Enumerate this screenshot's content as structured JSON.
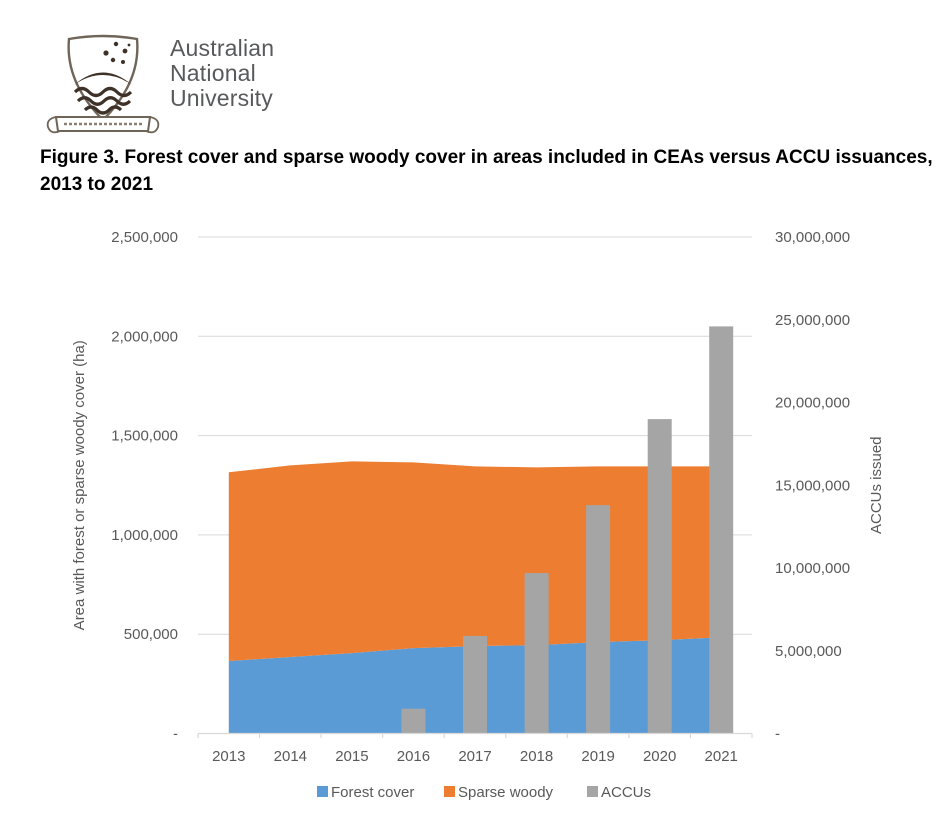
{
  "logo": {
    "org_lines": [
      "Australian",
      "National",
      "University"
    ]
  },
  "figure_title": "Figure 3. Forest cover and sparse woody cover in areas included in CEAs versus ACCU issuances, 2013 to 2021",
  "chart_data": {
    "type": "combo",
    "subtypes": [
      "area",
      "bar"
    ],
    "categories": [
      "2013",
      "2014",
      "2015",
      "2016",
      "2017",
      "2018",
      "2019",
      "2020",
      "2021"
    ],
    "series": [
      {
        "name": "Forest cover",
        "type": "area",
        "stack": "cover",
        "axis": "left",
        "color": "#5B9BD5",
        "values": [
          365000,
          385000,
          405000,
          430000,
          440000,
          445000,
          460000,
          470000,
          485000
        ]
      },
      {
        "name": "Sparse woody",
        "type": "area",
        "stack": "cover",
        "axis": "left",
        "color": "#ED7D31",
        "values": [
          950000,
          965000,
          965000,
          935000,
          905000,
          895000,
          885000,
          875000,
          860000
        ]
      },
      {
        "name": "ACCUs",
        "type": "bar",
        "axis": "right",
        "color": "#A5A5A5",
        "values": [
          0,
          0,
          0,
          1500000,
          5900000,
          9700000,
          13800000,
          19000000,
          24600000
        ]
      }
    ],
    "left_axis": {
      "title": "Area with forest or sparse woody cover (ha)",
      "min": 0,
      "max": 2500000,
      "step": 500000,
      "tick_labels": [
        "-",
        "500,000",
        "1,000,000",
        "1,500,000",
        "2,000,000",
        "2,500,000"
      ]
    },
    "right_axis": {
      "title": "ACCUs issued",
      "min": 0,
      "max": 30000000,
      "step": 5000000,
      "tick_labels": [
        "-",
        "5,000,000",
        "10,000,000",
        "15,000,000",
        "20,000,000",
        "25,000,000",
        "30,000,000"
      ]
    },
    "legend": {
      "position": "bottom",
      "entries": [
        "Forest cover",
        "Sparse woody",
        "ACCUs"
      ]
    },
    "grid": true,
    "colors": {
      "grid": "#D9D9D9",
      "axis_text": "#595959",
      "title_text": "#000000"
    }
  }
}
